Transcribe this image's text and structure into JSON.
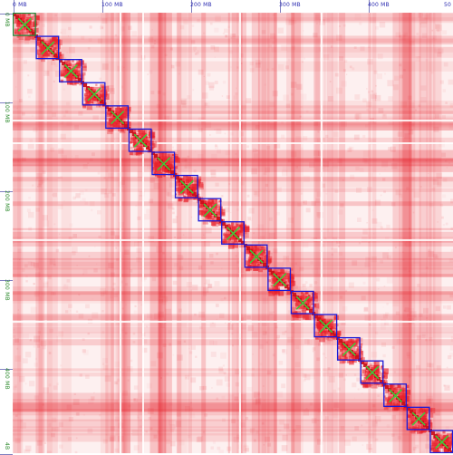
{
  "viewer": {
    "x_ticks": [
      "0 MB",
      "100 MB",
      "200 MB",
      "300 MB",
      "400 MB",
      "50"
    ],
    "y_ticks": [
      "0 MB",
      "100 MB",
      "200 MB",
      "300 MB",
      "400 MB",
      "4B"
    ],
    "x_tick_color": "#2b2bb0",
    "y_tick_color": "#2e8b2e",
    "ruler_tick_color": "#7f7fc0",
    "background_color": "#fdf0f0",
    "contact_color": "#e8202a",
    "domain_box_color": "#1a1ad8",
    "first_domain_box_color": "#1f8a3a",
    "center_marker_color": "#3ad13a",
    "domain_count": 19
  }
}
